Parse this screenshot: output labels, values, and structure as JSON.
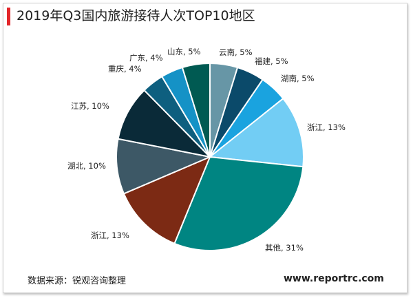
{
  "title": "2019年Q3国内旅游接待人次TOP10地区",
  "source": "数据来源：锐观咨询整理",
  "website": "www.reportrc.com",
  "chart_data": {
    "type": "pie",
    "slices": [
      {
        "label": "云南, 5%",
        "name": "云南",
        "value": 5,
        "color": "#6796a6"
      },
      {
        "label": "福建, 5%",
        "name": "福建",
        "value": 5,
        "color": "#0b4a6a"
      },
      {
        "label": "湖南, 5%",
        "name": "湖南",
        "value": 5,
        "color": "#1aa3df"
      },
      {
        "label": "浙江, 13%",
        "name": "浙江",
        "value": 13,
        "color": "#72cdf4"
      },
      {
        "label": "其他, 31%",
        "name": "其他",
        "value": 31,
        "color": "#008582"
      },
      {
        "label": "浙江, 13%",
        "name": "浙江",
        "value": 13,
        "color": "#7c2a14"
      },
      {
        "label": "湖北, 10%",
        "name": "湖北",
        "value": 10,
        "color": "#3d5866"
      },
      {
        "label": "江苏, 10%",
        "name": "江苏",
        "value": 10,
        "color": "#0a2a38"
      },
      {
        "label": "重庆, 4%",
        "name": "重庆",
        "value": 4,
        "color": "#0e5f7f"
      },
      {
        "label": "广东, 4%",
        "name": "广东",
        "value": 4,
        "color": "#1592c6"
      },
      {
        "label": "山东, 5%",
        "name": "山东",
        "value": 5,
        "color": "#005a52"
      }
    ]
  }
}
